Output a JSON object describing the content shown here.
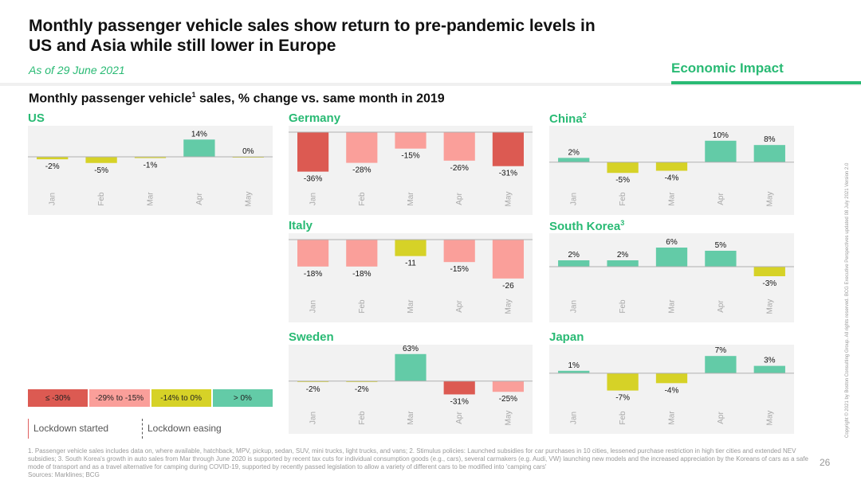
{
  "header": {
    "title": "Monthly passenger vehicle sales show return to pre-pandemic levels in US and Asia while still lower in Europe",
    "date": "As of 29 June 2021",
    "section": "Economic Impact"
  },
  "subtitle": {
    "text": "Monthly passenger vehicle",
    "sup": "1",
    "rest": " sales, % change vs. same month in 2019"
  },
  "colors": {
    "deep_red": "#dc5a52",
    "light_red": "#fa9f9a",
    "yellow": "#d6d227",
    "green": "#63cba7",
    "accent": "#29ba74"
  },
  "chart_data": [
    {
      "type": "bar",
      "title": "US",
      "sup": "",
      "categories": [
        "Jan",
        "Feb",
        "Mar",
        "Apr",
        "May"
      ],
      "values": [
        -2,
        -5,
        -1,
        14,
        0
      ],
      "labels": [
        "-2%",
        "-5%",
        "-1%",
        "14%",
        "0%"
      ],
      "ylim": [
        -20,
        20
      ]
    },
    {
      "type": "bar",
      "title": "Germany",
      "sup": "",
      "categories": [
        "Jan",
        "Feb",
        "Mar",
        "Apr",
        "May"
      ],
      "values": [
        -36,
        -28,
        -15,
        -26,
        -31
      ],
      "labels": [
        "-36%",
        "-28%",
        "-15%",
        "-26%",
        "-31%"
      ],
      "ylim": [
        -45,
        0
      ]
    },
    {
      "type": "bar",
      "title": "China",
      "sup": "2",
      "categories": [
        "Jan",
        "Feb",
        "Mar",
        "Apr",
        "May"
      ],
      "values": [
        2,
        -5,
        -4,
        10,
        8
      ],
      "labels": [
        "2%",
        "-5%",
        "-4%",
        "10%",
        "8%"
      ],
      "ylim": [
        -9,
        14
      ]
    },
    {
      "type": "bar",
      "title": "Italy",
      "sup": "",
      "categories": [
        "Jan",
        "Feb",
        "Mar",
        "Apr",
        "May"
      ],
      "values": [
        -18,
        -18,
        -11,
        -15,
        -26
      ],
      "labels": [
        "-18%",
        "-18%",
        "-11",
        "-15%",
        "-26"
      ],
      "ylim": [
        -33,
        0
      ]
    },
    {
      "type": "bar",
      "title": "South Korea",
      "sup": "3",
      "categories": [
        "Jan",
        "Feb",
        "Mar",
        "Apr",
        "May"
      ],
      "values": [
        2,
        2,
        6,
        5,
        -3
      ],
      "labels": [
        "2%",
        "2%",
        "6%",
        "5%",
        "-3%"
      ],
      "ylim": [
        -7,
        8.5
      ]
    },
    {
      "type": "bar",
      "title": "Sweden",
      "sup": "",
      "categories": [
        "Jan",
        "Feb",
        "Mar",
        "Apr",
        "May"
      ],
      "values": [
        -2,
        -2,
        63,
        -31,
        -25
      ],
      "labels": [
        "-2%",
        "-2%",
        "63%",
        "-31%",
        "-25%"
      ],
      "ylim": [
        -45,
        70
      ]
    },
    {
      "type": "bar",
      "title": "Japan",
      "sup": "",
      "categories": [
        "Jan",
        "Feb",
        "Mar",
        "Apr",
        "May"
      ],
      "values": [
        1,
        -7,
        -4,
        7,
        3
      ],
      "labels": [
        "1%",
        "-7%",
        "-4%",
        "7%",
        "3%"
      ],
      "ylim": [
        -11,
        9
      ]
    }
  ],
  "legend": [
    {
      "label": "≤ -30%",
      "color": "#dc5a52"
    },
    {
      "label": "-29% to -15%",
      "color": "#fa9f9a"
    },
    {
      "label": "-14% to 0%",
      "color": "#d6d227"
    },
    {
      "label": "> 0%",
      "color": "#63cba7"
    }
  ],
  "lockdown": {
    "started": "Lockdown started",
    "easing": "Lockdown easing"
  },
  "footnote": "1. Passenger vehicle sales includes data on, where available, hatchback, MPV, pickup, sedan, SUV, mini trucks, light trucks, and vans; 2. Stimulus policies: Launched subsidies for car purchases in 10 cities, lessened purchase restriction in high tier cities and extended NEV subsidies; 3. South Korea's growth in auto sales from Mar through June 2020 is supported by recent tax cuts for individual consumption goods (e.g., cars), several carmakers (e.g. Audi, VW) launching new models and the increased appreciation by the Koreans of cars as a safe mode of transport and as a travel alternative for camping during COVID-19, supported by recently passed legislation to allow a variety of different cars to be modified into 'camping cars'",
  "sources": "Sources: Marklines; BCG",
  "page_number": "26",
  "copyright": "Copyright © 2021 by Boston Consulting Group. All rights reserved. BCG Executive Perspectives updated 08 July 2021 Version 2.0"
}
